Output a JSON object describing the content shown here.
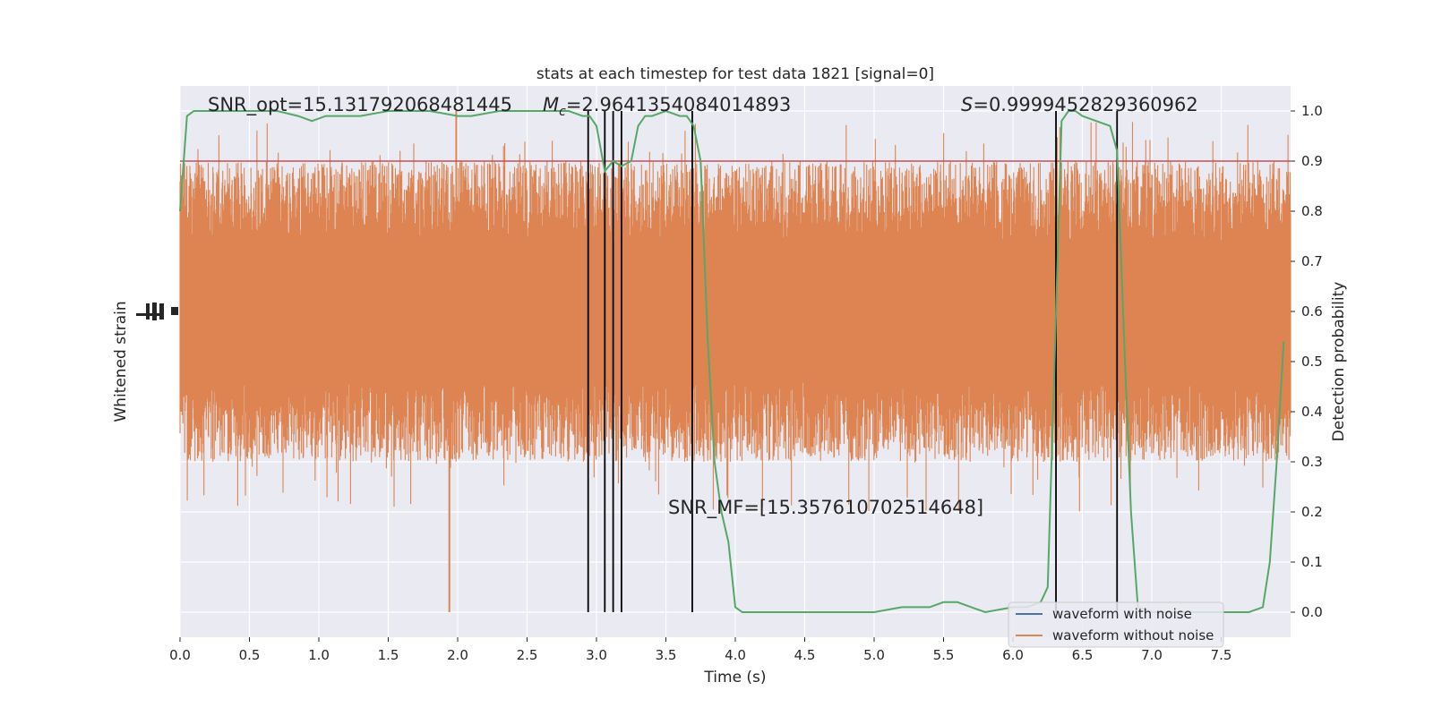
{
  "chart_data": {
    "type": "line",
    "title": "stats at each timestep for test data 1821 [signal=0]",
    "xlabel": "Time (s)",
    "ylabel_left": "Whitened strain",
    "ylabel_right": "Detection probability",
    "xlim": [
      0,
      8
    ],
    "ylim_right": [
      -0.05,
      1.05
    ],
    "xticks": [
      0.0,
      0.5,
      1.0,
      1.5,
      2.0,
      2.5,
      3.0,
      3.5,
      4.0,
      4.5,
      5.0,
      5.5,
      6.0,
      6.5,
      7.0,
      7.5
    ],
    "xtick_labels": [
      "0.0",
      "0.5",
      "1.0",
      "1.5",
      "2.0",
      "2.5",
      "3.0",
      "3.5",
      "4.0",
      "4.5",
      "5.0",
      "5.5",
      "6.0",
      "6.5",
      "7.0",
      "7.5"
    ],
    "yticks_right": [
      0.0,
      0.1,
      0.2,
      0.3,
      0.4,
      0.5,
      0.6,
      0.7,
      0.8,
      0.9,
      1.0
    ],
    "ytick_labels_right": [
      "0.0",
      "0.1",
      "0.2",
      "0.3",
      "0.4",
      "0.5",
      "0.6",
      "0.7",
      "0.8",
      "0.9",
      "1.0"
    ],
    "grid": true,
    "legend_position": "lower-right",
    "legend": [
      {
        "label": "waveform with noise",
        "color": "#4c72b0"
      },
      {
        "label": "waveform without noise",
        "color": "#dd8452"
      }
    ],
    "annotations": {
      "snr_opt": "SNR_opt=15.131792068481445",
      "mc_symbol": "M",
      "mc_sub": "c",
      "mc_value": "=2.9641354084014893",
      "s_symbol": "S",
      "s_value": "=0.9999452829360962",
      "snr_mf": "SNR_MF=[15.357610702514648]"
    },
    "threshold": {
      "value": 0.9,
      "color": "#c44e52"
    },
    "vertical_lines": [
      2.94,
      3.06,
      3.12,
      3.18,
      3.69,
      6.31,
      6.75
    ],
    "strain_series": {
      "name": "waveform without noise",
      "color": "#dd8452",
      "band_core": [
        0.5,
        0.7
      ],
      "band_typical": [
        0.38,
        0.82
      ]
    },
    "detection_probability": {
      "color": "#55a868",
      "x": [
        0.0,
        0.05,
        0.1,
        0.2,
        0.3,
        0.5,
        0.7,
        0.85,
        0.95,
        1.05,
        1.2,
        1.3,
        1.5,
        1.8,
        2.0,
        2.1,
        2.3,
        2.5,
        2.7,
        2.8,
        2.9,
        2.95,
        3.0,
        3.06,
        3.12,
        3.18,
        3.25,
        3.3,
        3.35,
        3.4,
        3.5,
        3.6,
        3.65,
        3.7,
        3.75,
        3.8,
        3.85,
        3.9,
        3.95,
        4.0,
        4.05,
        4.2,
        4.5,
        4.8,
        5.0,
        5.2,
        5.4,
        5.5,
        5.6,
        5.7,
        5.8,
        6.0,
        6.1,
        6.2,
        6.25,
        6.3,
        6.35,
        6.4,
        6.45,
        6.5,
        6.6,
        6.7,
        6.75,
        6.8,
        6.85,
        6.9,
        7.0,
        7.3,
        7.6,
        7.7,
        7.8,
        7.85,
        7.9,
        7.95
      ],
      "y": [
        0.8,
        0.99,
        1.0,
        1.0,
        1.0,
        1.0,
        1.0,
        0.99,
        0.98,
        0.99,
        0.99,
        0.99,
        1.0,
        1.0,
        0.99,
        0.99,
        1.0,
        1.0,
        1.0,
        1.0,
        0.99,
        0.99,
        0.97,
        0.88,
        0.9,
        0.89,
        0.9,
        0.97,
        0.99,
        0.99,
        1.0,
        0.99,
        0.99,
        0.97,
        0.9,
        0.55,
        0.3,
        0.2,
        0.14,
        0.01,
        0.0,
        0.0,
        0.0,
        0.0,
        0.0,
        0.01,
        0.01,
        0.02,
        0.02,
        0.01,
        0.0,
        0.01,
        0.01,
        0.02,
        0.05,
        0.5,
        0.98,
        1.0,
        1.0,
        0.99,
        0.98,
        0.97,
        0.92,
        0.55,
        0.2,
        0.01,
        0.0,
        0.0,
        0.0,
        0.0,
        0.01,
        0.1,
        0.3,
        0.54
      ]
    }
  }
}
